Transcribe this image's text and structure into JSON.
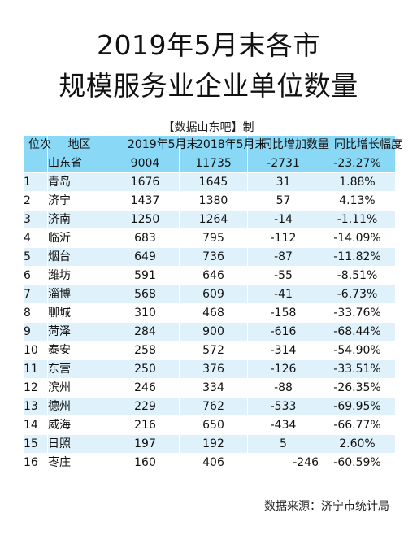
{
  "title_line1": "2019年5月末各市",
  "title_line2": "规模服务业企业单位数量",
  "credit": "【数据山东吧】制",
  "headers": {
    "rank": "位次",
    "region": "地区",
    "y2019": "2019年5月末",
    "y2018": "2018年5月末",
    "change": "同比增加数量",
    "rate": "同比增长幅度"
  },
  "province": {
    "name": "山东省",
    "y2019": "9004",
    "y2018": "11735",
    "change": "-2731",
    "rate": "-23.27%"
  },
  "rows": [
    {
      "rank": "1",
      "city": "青岛",
      "y2019": "1676",
      "y2018": "1645",
      "change": "31",
      "rate": "1.88%"
    },
    {
      "rank": "2",
      "city": "济宁",
      "y2019": "1437",
      "y2018": "1380",
      "change": "57",
      "rate": "4.13%"
    },
    {
      "rank": "3",
      "city": "济南",
      "y2019": "1250",
      "y2018": "1264",
      "change": "-14",
      "rate": "-1.11%"
    },
    {
      "rank": "4",
      "city": "临沂",
      "y2019": "683",
      "y2018": "795",
      "change": "-112",
      "rate": "-14.09%"
    },
    {
      "rank": "5",
      "city": "烟台",
      "y2019": "649",
      "y2018": "736",
      "change": "-87",
      "rate": "-11.82%"
    },
    {
      "rank": "6",
      "city": "潍坊",
      "y2019": "591",
      "y2018": "646",
      "change": "-55",
      "rate": "-8.51%"
    },
    {
      "rank": "7",
      "city": "淄博",
      "y2019": "568",
      "y2018": "609",
      "change": "-41",
      "rate": "-6.73%"
    },
    {
      "rank": "8",
      "city": "聊城",
      "y2019": "310",
      "y2018": "468",
      "change": "-158",
      "rate": "-33.76%"
    },
    {
      "rank": "9",
      "city": "菏泽",
      "y2019": "284",
      "y2018": "900",
      "change": "-616",
      "rate": "-68.44%"
    },
    {
      "rank": "10",
      "city": "泰安",
      "y2019": "258",
      "y2018": "572",
      "change": "-314",
      "rate": "-54.90%"
    },
    {
      "rank": "11",
      "city": "东营",
      "y2019": "250",
      "y2018": "376",
      "change": "-126",
      "rate": "-33.51%"
    },
    {
      "rank": "12",
      "city": "滨州",
      "y2019": "246",
      "y2018": "334",
      "change": "-88",
      "rate": "-26.35%"
    },
    {
      "rank": "13",
      "city": "德州",
      "y2019": "229",
      "y2018": "762",
      "change": "-533",
      "rate": "-69.95%"
    },
    {
      "rank": "14",
      "city": "威海",
      "y2019": "216",
      "y2018": "650",
      "change": "-434",
      "rate": "-66.77%"
    },
    {
      "rank": "15",
      "city": "日照",
      "y2019": "197",
      "y2018": "192",
      "change": "5",
      "rate": "2.60%"
    },
    {
      "rank": "16",
      "city": "枣庄",
      "y2019": "160",
      "y2018": "406",
      "change": "-246",
      "rate": "-60.59%"
    }
  ],
  "source": "数据来源：济宁市统计局",
  "colors": {
    "header_bg": "#88d8f6",
    "stripe_bg": "#dff2fb"
  }
}
